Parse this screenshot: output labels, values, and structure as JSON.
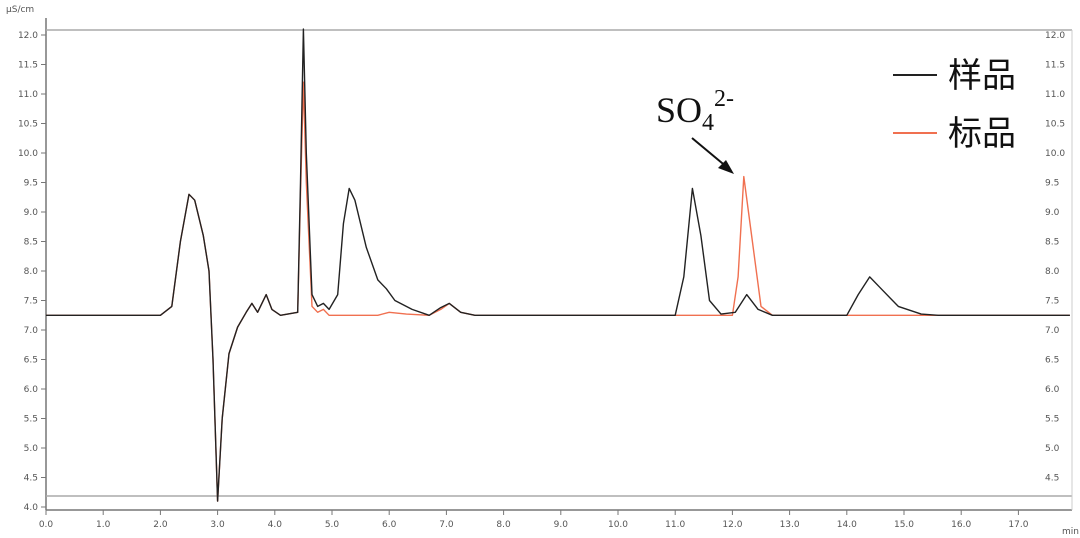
{
  "chart_data": {
    "type": "line",
    "ylabel": "µS/cm",
    "xlabel": "min",
    "xlim": [
      0,
      17.9
    ],
    "ylim": [
      4.0,
      12.0
    ],
    "xticks": [
      "0.0",
      "1.0",
      "2.0",
      "3.0",
      "4.0",
      "5.0",
      "6.0",
      "7.0",
      "8.0",
      "9.0",
      "10.0",
      "11.0",
      "12.0",
      "13.0",
      "14.0",
      "15.0",
      "16.0",
      "17.0"
    ],
    "yticks": [
      "4.0",
      "4.5",
      "5.0",
      "5.5",
      "6.0",
      "6.5",
      "7.0",
      "7.5",
      "8.0",
      "8.5",
      "9.0",
      "9.5",
      "10.0",
      "10.5",
      "11.0",
      "11.5",
      "12.0"
    ],
    "right_yticks": [
      "4.5",
      "5.0",
      "5.5",
      "6.0",
      "6.5",
      "7.0",
      "7.5",
      "8.0",
      "8.5",
      "9.0",
      "9.5",
      "10.0",
      "10.5",
      "11.0",
      "11.5",
      "12.0"
    ],
    "legend_position": "top-right",
    "annotation": {
      "text": "SO",
      "sub": "4",
      "sup": "2-",
      "x": 12.2,
      "y": 9.6
    },
    "series": [
      {
        "name": "样品",
        "color": "#222222",
        "points": [
          [
            0,
            7.25
          ],
          [
            2.0,
            7.25
          ],
          [
            2.2,
            7.4
          ],
          [
            2.35,
            8.5
          ],
          [
            2.5,
            9.3
          ],
          [
            2.6,
            9.2
          ],
          [
            2.75,
            8.6
          ],
          [
            2.85,
            8.0
          ],
          [
            2.92,
            6.5
          ],
          [
            3.0,
            4.1
          ],
          [
            3.08,
            5.5
          ],
          [
            3.2,
            6.6
          ],
          [
            3.35,
            7.05
          ],
          [
            3.5,
            7.3
          ],
          [
            3.6,
            7.45
          ],
          [
            3.7,
            7.3
          ],
          [
            3.85,
            7.6
          ],
          [
            3.95,
            7.35
          ],
          [
            4.1,
            7.25
          ],
          [
            4.4,
            7.3
          ],
          [
            4.45,
            9.5
          ],
          [
            4.5,
            12.1
          ],
          [
            4.55,
            10
          ],
          [
            4.65,
            7.6
          ],
          [
            4.75,
            7.4
          ],
          [
            4.85,
            7.45
          ],
          [
            4.95,
            7.35
          ],
          [
            5.1,
            7.6
          ],
          [
            5.2,
            8.8
          ],
          [
            5.3,
            9.4
          ],
          [
            5.4,
            9.2
          ],
          [
            5.6,
            8.4
          ],
          [
            5.8,
            7.85
          ],
          [
            5.95,
            7.7
          ],
          [
            6.1,
            7.5
          ],
          [
            6.4,
            7.35
          ],
          [
            6.7,
            7.25
          ],
          [
            6.9,
            7.38
          ],
          [
            7.05,
            7.45
          ],
          [
            7.25,
            7.3
          ],
          [
            7.5,
            7.25
          ],
          [
            11.0,
            7.25
          ],
          [
            11.15,
            7.9
          ],
          [
            11.3,
            9.4
          ],
          [
            11.45,
            8.6
          ],
          [
            11.6,
            7.5
          ],
          [
            11.8,
            7.27
          ],
          [
            12.05,
            7.3
          ],
          [
            12.25,
            7.6
          ],
          [
            12.45,
            7.35
          ],
          [
            12.7,
            7.25
          ],
          [
            14.0,
            7.25
          ],
          [
            14.2,
            7.6
          ],
          [
            14.4,
            7.9
          ],
          [
            14.6,
            7.7
          ],
          [
            14.9,
            7.4
          ],
          [
            15.3,
            7.27
          ],
          [
            15.6,
            7.25
          ],
          [
            17.9,
            7.25
          ]
        ]
      },
      {
        "name": "标品",
        "color": "#f07050",
        "points": [
          [
            0,
            7.25
          ],
          [
            2.0,
            7.25
          ],
          [
            2.2,
            7.4
          ],
          [
            2.35,
            8.5
          ],
          [
            2.5,
            9.3
          ],
          [
            2.6,
            9.2
          ],
          [
            2.75,
            8.6
          ],
          [
            2.85,
            8.0
          ],
          [
            2.92,
            6.5
          ],
          [
            3.0,
            4.1
          ],
          [
            3.08,
            5.5
          ],
          [
            3.2,
            6.6
          ],
          [
            3.35,
            7.05
          ],
          [
            3.5,
            7.3
          ],
          [
            3.6,
            7.45
          ],
          [
            3.7,
            7.3
          ],
          [
            3.85,
            7.6
          ],
          [
            3.95,
            7.35
          ],
          [
            4.1,
            7.25
          ],
          [
            4.4,
            7.3
          ],
          [
            4.45,
            9.3
          ],
          [
            4.5,
            11.2
          ],
          [
            4.55,
            9.5
          ],
          [
            4.65,
            7.4
          ],
          [
            4.75,
            7.3
          ],
          [
            4.85,
            7.35
          ],
          [
            4.95,
            7.25
          ],
          [
            5.8,
            7.25
          ],
          [
            6.0,
            7.3
          ],
          [
            6.3,
            7.27
          ],
          [
            6.7,
            7.25
          ],
          [
            6.9,
            7.35
          ],
          [
            7.05,
            7.45
          ],
          [
            7.25,
            7.3
          ],
          [
            7.5,
            7.25
          ],
          [
            12.0,
            7.25
          ],
          [
            12.1,
            7.9
          ],
          [
            12.2,
            9.6
          ],
          [
            12.35,
            8.5
          ],
          [
            12.5,
            7.4
          ],
          [
            12.7,
            7.25
          ],
          [
            17.9,
            7.25
          ]
        ]
      }
    ]
  }
}
